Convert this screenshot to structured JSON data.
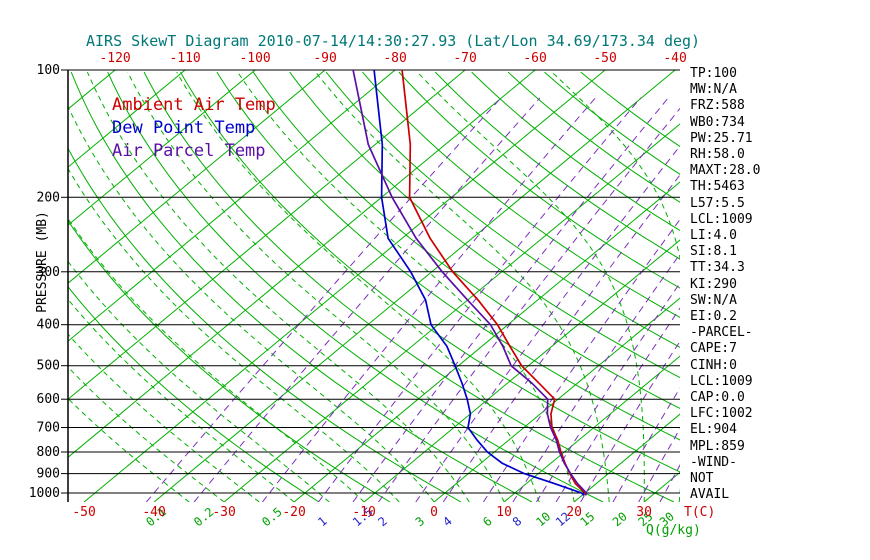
{
  "title": {
    "text": "AIRS SkewT Diagram 2010-07-14/14:30:27.93 (Lat/Lon 34.69/173.34 deg)"
  },
  "colors": {
    "background": "#ffffff",
    "title": "#007878",
    "axis": "#000000",
    "isolines_green": "#00b000",
    "temp_ticks_red": "#cc0000",
    "mixing_line_purple": "#7b2fbe",
    "q_label_green": "#00a000",
    "q_label_blue": "#2222cc",
    "ambient_red": "#cc0000",
    "dewpoint_blue": "#0000cc",
    "parcel_purple": "#5b0ea6"
  },
  "legend": {
    "items": [
      {
        "label": "Ambient Air Temp",
        "color": "#cc0000"
      },
      {
        "label": "Dew Point Temp",
        "color": "#0000cc"
      },
      {
        "label": "Air Parcel Temp",
        "color": "#5b0ea6"
      }
    ]
  },
  "right_panel": {
    "lines": [
      "TP:100",
      "MW:N/A",
      "FRZ:588",
      "WB0:734",
      "PW:25.71",
      "RH:58.0",
      "MAXT:28.0",
      "TH:5463",
      "L57:5.5",
      "LCL:1009",
      "LI:4.0",
      "SI:8.1",
      "TT:34.3",
      "KI:290",
      "SW:N/A",
      "EI:0.2",
      "-PARCEL-",
      "CAPE:7",
      "CINH:0",
      "LCL:1009",
      "CAP:0.0",
      "LFC:1002",
      "EL:904",
      "MPL:859",
      "-WIND-",
      "NOT",
      "AVAIL"
    ]
  },
  "chart_data": {
    "type": "line",
    "subtype": "skew-t-log-p",
    "title": "AIRS SkewT Diagram 2010-07-14/14:30:27.93 (Lat/Lon 34.69/173.34 deg)",
    "x_axis": {
      "label": "T(C)",
      "top_ticks_c": [
        -120,
        -110,
        -100,
        -90,
        -80,
        -70,
        -60,
        -50,
        -40
      ],
      "bottom_ticks_c": [
        -50,
        -40,
        -30,
        -20,
        -10,
        0,
        10,
        20,
        30
      ]
    },
    "y_axis": {
      "label": "PRESSURE (MB)",
      "scale": "log",
      "range_mb": [
        100,
        1050
      ],
      "ticks_mb": [
        100,
        200,
        300,
        400,
        500,
        600,
        700,
        800,
        900,
        1000
      ]
    },
    "secondary_axis": {
      "label": "Q(g/kg)",
      "mixing_ratio_labels": [
        {
          "value": "0.1",
          "color": "green"
        },
        {
          "value": "0.2",
          "color": "green"
        },
        {
          "value": "0.5",
          "color": "green"
        },
        {
          "value": "1",
          "color": "blue"
        },
        {
          "value": "1.5",
          "color": "blue"
        },
        {
          "value": "2",
          "color": "blue"
        },
        {
          "value": "3",
          "color": "green"
        },
        {
          "value": "4",
          "color": "blue"
        },
        {
          "value": "6",
          "color": "green"
        },
        {
          "value": "8",
          "color": "blue"
        },
        {
          "value": "10",
          "color": "green"
        },
        {
          "value": "12",
          "color": "blue"
        },
        {
          "value": "15",
          "color": "green"
        },
        {
          "value": "20",
          "color": "green"
        },
        {
          "value": "25",
          "color": "green"
        },
        {
          "value": "30",
          "color": "green"
        }
      ]
    },
    "background": {
      "isotherms_c": {
        "min": -160,
        "max": 60,
        "step": 10
      },
      "dry_adiabats_theta_c": {
        "min": -20,
        "max": 150,
        "step": 10
      },
      "moist_adiabats_start_c": {
        "min": -35,
        "max": 40,
        "step": 5
      },
      "isobars_mb": [
        100,
        200,
        300,
        400,
        500,
        600,
        700,
        800,
        900,
        1000
      ]
    },
    "series": [
      {
        "name": "Ambient Air Temp",
        "color": "#cc0000",
        "pressure_mb": [
          100,
          150,
          200,
          250,
          300,
          350,
          400,
          450,
          500,
          550,
          600,
          650,
          700,
          750,
          800,
          850,
          900,
          950,
          1000,
          1013
        ],
        "temp_c": [
          -79,
          -65,
          -56,
          -46,
          -37,
          -28.5,
          -21.5,
          -16,
          -11,
          -5.5,
          -0.5,
          1.5,
          4,
          7,
          9.5,
          12,
          14.5,
          17,
          20,
          20.5
        ]
      },
      {
        "name": "Dew Point Temp",
        "color": "#0000cc",
        "pressure_mb": [
          100,
          150,
          200,
          250,
          300,
          350,
          400,
          450,
          500,
          550,
          600,
          650,
          700,
          750,
          800,
          850,
          900,
          950,
          1000,
          1013
        ],
        "temp_c": [
          -83,
          -69,
          -60,
          -52,
          -43,
          -36,
          -31,
          -25,
          -20.5,
          -16.5,
          -13,
          -10,
          -8,
          -4.5,
          -1,
          3,
          8,
          14,
          19.5,
          20.3
        ]
      },
      {
        "name": "Air Parcel Temp",
        "color": "#5b0ea6",
        "pressure_mb": [
          100,
          150,
          200,
          250,
          300,
          350,
          400,
          450,
          500,
          550,
          600,
          650,
          700,
          750,
          800,
          850,
          900,
          950,
          1000,
          1013
        ],
        "temp_c": [
          -86,
          -71,
          -58.5,
          -48,
          -38.5,
          -30,
          -22.5,
          -17,
          -12.5,
          -6.5,
          -1.5,
          1,
          3.8,
          6.8,
          9.3,
          11.9,
          14.6,
          17.3,
          20.2,
          20.5
        ]
      }
    ]
  }
}
